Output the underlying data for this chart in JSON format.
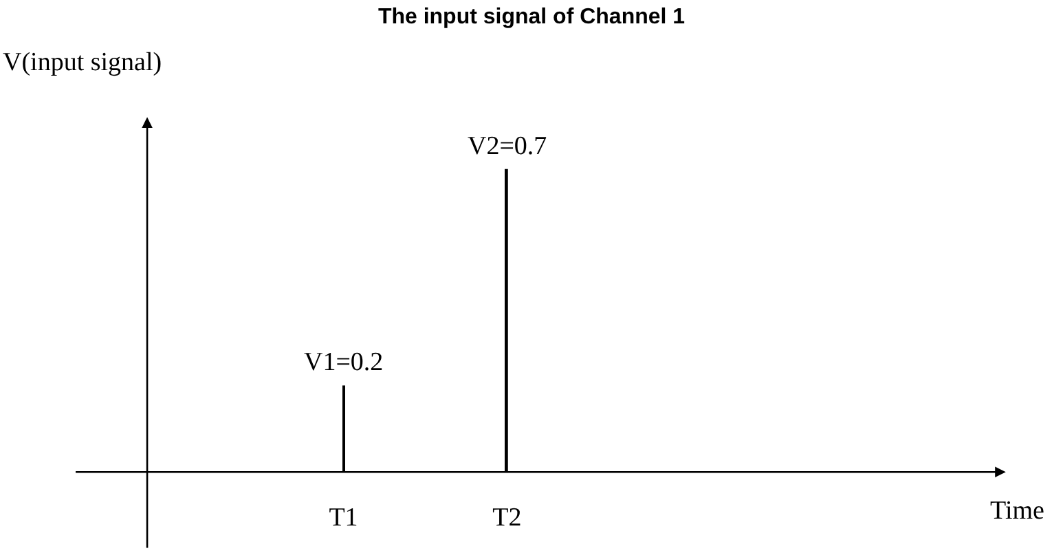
{
  "chart_data": {
    "type": "bar",
    "title": "The input signal of Channel 1",
    "annotations": [
      "V(input signal)",
      "Time"
    ],
    "categories": [
      "T1",
      "T2"
    ],
    "values": [
      0.2,
      0.7
    ],
    "value_labels": [
      "V1=0.2",
      "V2=0.7"
    ],
    "color": "#000000"
  }
}
